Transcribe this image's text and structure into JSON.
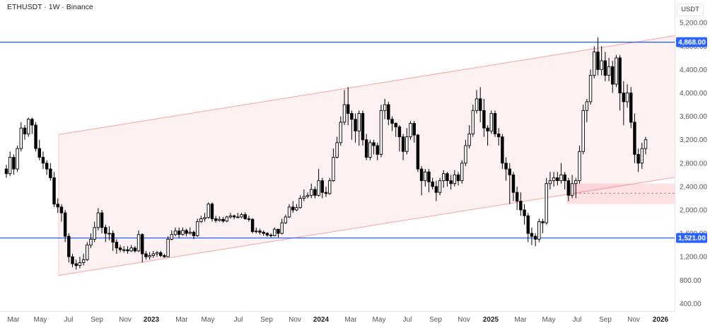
{
  "header": {
    "title": "ETHUSDT · 1W · Binance",
    "currency": "USDT"
  },
  "chart_data": {
    "type": "candlestick",
    "symbol": "ETHUSDT",
    "interval": "1W",
    "exchange": "Binance",
    "y_axis": {
      "ticks": [
        "5,200.00",
        "4,800.00",
        "4,400.00",
        "4,000.00",
        "3,600.00",
        "3,200.00",
        "2,800.00",
        "2,400.00",
        "2,000.00",
        "1,600.00",
        "1,200.00",
        "800.00",
        "400.00"
      ],
      "tick_values": [
        5200,
        4800,
        4400,
        4000,
        3600,
        3200,
        2800,
        2400,
        2000,
        1600,
        1200,
        800,
        400
      ],
      "range": [
        260,
        5420
      ],
      "unit": "USDT"
    },
    "x_axis": {
      "labels": [
        "Mar",
        "May",
        "Jul",
        "Sep",
        "Nov",
        "2023",
        "Mar",
        "May",
        "Jul",
        "Sep",
        "Nov",
        "2024",
        "Mar",
        "May",
        "Jul",
        "Sep",
        "Nov",
        "2025",
        "Mar",
        "May",
        "Jul",
        "Sep",
        "Nov",
        "2026"
      ],
      "bold": [
        "2023",
        "2024",
        "2025",
        "2026"
      ]
    },
    "horizontal_levels": [
      {
        "value": 4868,
        "label": "4,868.00",
        "color": "#2962ff"
      },
      {
        "value": 1521,
        "label": "1,521.00",
        "color": "#2962ff"
      }
    ],
    "channel": {
      "color": "#f23645",
      "upper": [
        [
          "2022-06-13",
          3290
        ],
        [
          "2025-12-29",
          4980
        ]
      ],
      "lower": [
        [
          "2022-06-13",
          880
        ],
        [
          "2025-12-29",
          2560
        ]
      ]
    },
    "zone": {
      "from": "2025-05-05",
      "to": "2025-12-29",
      "low": 2100,
      "high": 2450,
      "mid": 2285,
      "color": "#f23645"
    },
    "candles": [
      [
        2700,
        2620,
        2770,
        2550
      ],
      [
        2620,
        2900,
        3000,
        2580
      ],
      [
        2900,
        2700,
        2950,
        2600
      ],
      [
        2700,
        3050,
        3100,
        2650
      ],
      [
        3050,
        3400,
        3500,
        3000
      ],
      [
        3400,
        3300,
        3450,
        3200
      ],
      [
        3300,
        3550,
        3580,
        3250
      ],
      [
        3550,
        3450,
        3580,
        3300
      ],
      [
        3450,
        3050,
        3500,
        3000
      ],
      [
        3050,
        2900,
        3200,
        2850
      ],
      [
        2900,
        2800,
        3000,
        2700
      ],
      [
        2800,
        2700,
        2850,
        2600
      ],
      [
        2700,
        2550,
        2800,
        2500
      ],
      [
        2550,
        2100,
        2650,
        2050
      ],
      [
        2100,
        2050,
        2200,
        1950
      ],
      [
        2050,
        1950,
        2100,
        1800
      ],
      [
        1950,
        1550,
        2000,
        1450
      ],
      [
        1550,
        1200,
        1600,
        1100
      ],
      [
        1200,
        1080,
        1250,
        1020
      ],
      [
        1080,
        1050,
        1150,
        980
      ],
      [
        1050,
        1100,
        1200,
        1000
      ],
      [
        1100,
        1150,
        1250,
        1050
      ],
      [
        1150,
        1400,
        1450,
        1130
      ],
      [
        1400,
        1500,
        1600,
        1350
      ],
      [
        1500,
        1700,
        1800,
        1450
      ],
      [
        1700,
        1950,
        2030,
        1650
      ],
      [
        1950,
        1700,
        2000,
        1600
      ],
      [
        1700,
        1600,
        1750,
        1450
      ],
      [
        1600,
        1600,
        1720,
        1480
      ],
      [
        1600,
        1450,
        1650,
        1300
      ],
      [
        1450,
        1350,
        1500,
        1250
      ],
      [
        1350,
        1320,
        1400,
        1280
      ],
      [
        1320,
        1320,
        1380,
        1270
      ],
      [
        1320,
        1300,
        1380,
        1250
      ],
      [
        1300,
        1350,
        1400,
        1280
      ],
      [
        1350,
        1300,
        1380,
        1270
      ],
      [
        1300,
        1580,
        1650,
        1280
      ],
      [
        1580,
        1250,
        1600,
        1100
      ],
      [
        1250,
        1200,
        1300,
        1150
      ],
      [
        1200,
        1220,
        1280,
        1150
      ],
      [
        1220,
        1250,
        1300,
        1180
      ],
      [
        1250,
        1270,
        1300,
        1200
      ],
      [
        1270,
        1220,
        1300,
        1190
      ],
      [
        1220,
        1200,
        1250,
        1180
      ],
      [
        1200,
        1500,
        1550,
        1190
      ],
      [
        1500,
        1580,
        1650,
        1480
      ],
      [
        1580,
        1640,
        1700,
        1550
      ],
      [
        1640,
        1580,
        1700,
        1520
      ],
      [
        1580,
        1650,
        1700,
        1560
      ],
      [
        1650,
        1600,
        1680,
        1550
      ],
      [
        1600,
        1620,
        1700,
        1580
      ],
      [
        1620,
        1560,
        1650,
        1500
      ],
      [
        1560,
        1800,
        1850,
        1540
      ],
      [
        1800,
        1850,
        1900,
        1780
      ],
      [
        1850,
        1870,
        1950,
        1800
      ],
      [
        1870,
        2100,
        2130,
        1850
      ],
      [
        2100,
        1850,
        2130,
        1800
      ],
      [
        1850,
        1820,
        1900,
        1780
      ],
      [
        1820,
        1840,
        1890,
        1800
      ],
      [
        1840,
        1810,
        1880,
        1780
      ],
      [
        1810,
        1880,
        1900,
        1790
      ],
      [
        1880,
        1900,
        1950,
        1850
      ],
      [
        1900,
        1880,
        1920,
        1840
      ],
      [
        1880,
        1880,
        1950,
        1860
      ],
      [
        1880,
        1920,
        1950,
        1860
      ],
      [
        1920,
        1850,
        1960,
        1830
      ],
      [
        1850,
        1840,
        1900,
        1800
      ],
      [
        1840,
        1630,
        1860,
        1600
      ],
      [
        1630,
        1640,
        1700,
        1600
      ],
      [
        1640,
        1620,
        1680,
        1580
      ],
      [
        1620,
        1600,
        1650,
        1560
      ],
      [
        1600,
        1570,
        1620,
        1540
      ],
      [
        1570,
        1560,
        1600,
        1530
      ],
      [
        1560,
        1670,
        1700,
        1550
      ],
      [
        1670,
        1600,
        1680,
        1530
      ],
      [
        1600,
        1780,
        1850,
        1580
      ],
      [
        1780,
        1880,
        1920,
        1760
      ],
      [
        1880,
        2050,
        2100,
        1860
      ],
      [
        2050,
        2000,
        2150,
        1950
      ],
      [
        2000,
        2040,
        2100,
        1980
      ],
      [
        2040,
        2200,
        2250,
        2020
      ],
      [
        2200,
        2230,
        2350,
        2150
      ],
      [
        2230,
        2250,
        2300,
        2200
      ],
      [
        2250,
        2350,
        2450,
        2200
      ],
      [
        2350,
        2250,
        2400,
        2200
      ],
      [
        2250,
        2500,
        2700,
        2230
      ],
      [
        2500,
        2300,
        2550,
        2200
      ],
      [
        2300,
        2280,
        2400,
        2220
      ],
      [
        2280,
        2500,
        2550,
        2260
      ],
      [
        2500,
        2900,
        3050,
        2480
      ],
      [
        2900,
        3150,
        3250,
        2880
      ],
      [
        3150,
        3500,
        3600,
        3100
      ],
      [
        3500,
        3800,
        4050,
        3450
      ],
      [
        3800,
        3650,
        4100,
        3450
      ],
      [
        3650,
        3550,
        3700,
        3200
      ],
      [
        3550,
        3350,
        3650,
        3150
      ],
      [
        3350,
        3650,
        3700,
        3100
      ],
      [
        3650,
        3200,
        3700,
        3100
      ],
      [
        3200,
        2900,
        3300,
        2850
      ],
      [
        2900,
        3150,
        3200,
        2850
      ],
      [
        3150,
        3100,
        3200,
        2950
      ],
      [
        3100,
        2950,
        3150,
        2850
      ],
      [
        2950,
        3700,
        3800,
        2900
      ],
      [
        3700,
        3800,
        3900,
        3550
      ],
      [
        3800,
        3550,
        3850,
        3450
      ],
      [
        3550,
        3480,
        3600,
        3350
      ],
      [
        3480,
        3420,
        3500,
        3250
      ],
      [
        3420,
        3250,
        3450,
        3000
      ],
      [
        3250,
        3000,
        3300,
        2850
      ],
      [
        3000,
        3250,
        3400,
        2950
      ],
      [
        3250,
        3480,
        3520,
        3200
      ],
      [
        3480,
        3280,
        3520,
        3150
      ],
      [
        3280,
        2700,
        3300,
        2650
      ],
      [
        2700,
        2500,
        2750,
        2250
      ],
      [
        2500,
        2650,
        2700,
        2400
      ],
      [
        2650,
        2480,
        2700,
        2300
      ],
      [
        2480,
        2400,
        2550,
        2350
      ],
      [
        2400,
        2300,
        2500,
        2150
      ],
      [
        2300,
        2500,
        2550,
        2250
      ],
      [
        2500,
        2620,
        2680,
        2380
      ],
      [
        2620,
        2500,
        2650,
        2400
      ],
      [
        2500,
        2450,
        2600,
        2350
      ],
      [
        2450,
        2600,
        2680,
        2400
      ],
      [
        2600,
        2500,
        2650,
        2420
      ],
      [
        2500,
        2800,
        2850,
        2450
      ],
      [
        2800,
        3100,
        3200,
        2750
      ],
      [
        3100,
        3300,
        3450,
        3050
      ],
      [
        3300,
        3700,
        3800,
        3250
      ],
      [
        3700,
        3900,
        4050,
        3650
      ],
      [
        3900,
        3700,
        4100,
        3500
      ],
      [
        3700,
        3400,
        3900,
        3250
      ],
      [
        3400,
        3350,
        3450,
        3100
      ],
      [
        3350,
        3650,
        3700,
        3300
      ],
      [
        3650,
        3300,
        3700,
        3250
      ],
      [
        3300,
        3250,
        3400,
        3100
      ],
      [
        3250,
        2800,
        3300,
        2700
      ],
      [
        2800,
        2700,
        2900,
        2500
      ],
      [
        2700,
        2600,
        2800,
        2100
      ],
      [
        2600,
        2300,
        2650,
        2150
      ],
      [
        2300,
        2150,
        2400,
        2000
      ],
      [
        2150,
        2000,
        2300,
        1900
      ],
      [
        2000,
        1900,
        2100,
        1750
      ],
      [
        1900,
        1600,
        1950,
        1450
      ],
      [
        1600,
        1550,
        1700,
        1400
      ],
      [
        1550,
        1500,
        1600,
        1380
      ],
      [
        1500,
        1800,
        1850,
        1450
      ],
      [
        1800,
        1780,
        1850,
        1600
      ],
      [
        1780,
        2450,
        2550,
        1750
      ],
      [
        2450,
        2500,
        2650,
        2350
      ],
      [
        2500,
        2550,
        2650,
        2400
      ],
      [
        2550,
        2500,
        2650,
        2420
      ],
      [
        2500,
        2600,
        2800,
        2450
      ],
      [
        2600,
        2500,
        2650,
        2350
      ],
      [
        2500,
        2250,
        2550,
        2150
      ],
      [
        2250,
        2450,
        2600,
        2200
      ],
      [
        2450,
        2500,
        2550,
        2200
      ],
      [
        2500,
        3000,
        3100,
        2450
      ],
      [
        3000,
        3700,
        3800,
        2950
      ],
      [
        3700,
        3850,
        3900,
        3500
      ],
      [
        3850,
        4300,
        4400,
        3800
      ],
      [
        4300,
        4700,
        4800,
        4250
      ],
      [
        4700,
        4400,
        4950,
        4300
      ],
      [
        4400,
        4550,
        4800,
        4300
      ],
      [
        4550,
        4300,
        4700,
        4200
      ],
      [
        4300,
        4450,
        4600,
        4200
      ],
      [
        4450,
        4150,
        4550,
        4000
      ],
      [
        4150,
        4600,
        4650,
        4100
      ],
      [
        4600,
        4000,
        4650,
        3700
      ],
      [
        4000,
        3850,
        4200,
        3450
      ],
      [
        3850,
        4000,
        4150,
        3750
      ],
      [
        4000,
        3500,
        4100,
        3400
      ],
      [
        3500,
        2950,
        3650,
        2800
      ],
      [
        2950,
        2800,
        3050,
        2650
      ],
      [
        2800,
        3050,
        3150,
        2700
      ],
      [
        3050,
        3200,
        3250,
        2950
      ]
    ]
  }
}
